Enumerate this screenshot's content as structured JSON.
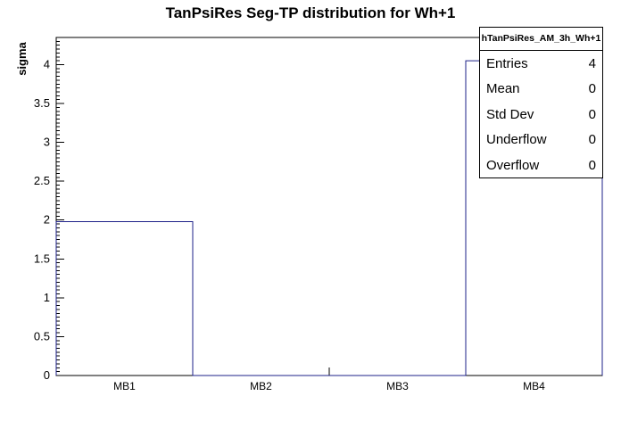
{
  "title": "TanPsiRes Seg-TP distribution for Wh+1",
  "y_axis_label": "sigma",
  "stats": {
    "name": "hTanPsiRes_AM_3h_Wh+1",
    "rows": [
      {
        "label": "Entries",
        "value": "4"
      },
      {
        "label": "Mean",
        "value": "0"
      },
      {
        "label": "Std Dev",
        "value": "0"
      },
      {
        "label": "Underflow",
        "value": "0"
      },
      {
        "label": "Overflow",
        "value": "0"
      }
    ]
  },
  "chart_data": {
    "type": "bar",
    "categories": [
      "MB1",
      "MB2",
      "MB3",
      "MB4"
    ],
    "values": [
      1.98,
      0,
      0,
      4.05
    ],
    "title": "TanPsiRes Seg-TP distribution for Wh+1",
    "xlabel": "",
    "ylabel": "sigma",
    "ylim": [
      0,
      4.35
    ],
    "y_ticks": [
      "0",
      "0.5",
      "1",
      "1.5",
      "2",
      "2.5",
      "3",
      "3.5",
      "4"
    ],
    "y_minor_step": 0.05,
    "grid": false,
    "legend_position": "none",
    "line_color": "#1d2088",
    "frame_color": "#000000"
  }
}
